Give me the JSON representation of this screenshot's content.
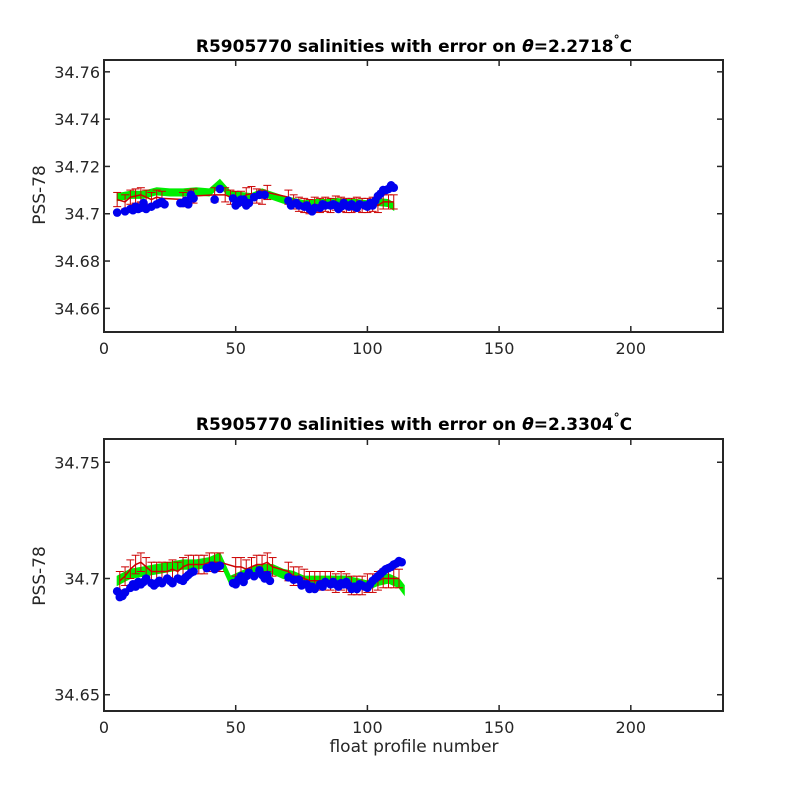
{
  "chart_data": [
    {
      "type": "scatter",
      "title_text": "R5905770 salinities with error on ",
      "title_symbol": "θ",
      "title_value": "=2.2718",
      "title_degree": "°",
      "title_unit": "C",
      "xlabel": "",
      "ylabel": "PSS-78",
      "xlim": [
        0,
        235
      ],
      "ylim": [
        34.65,
        34.765
      ],
      "xticks": [
        0,
        50,
        100,
        150,
        200
      ],
      "xtick_labels": [
        "0",
        "50",
        "100",
        "150",
        "200"
      ],
      "yticks": [
        34.66,
        34.68,
        34.7,
        34.72,
        34.74,
        34.76
      ],
      "ytick_labels": [
        "34.66",
        "34.68",
        "34.7",
        "34.72",
        "34.74",
        "34.76"
      ],
      "grid": false,
      "series": [
        {
          "role": "mapped-estimate-band",
          "color": "#00ee00",
          "x": [
            5,
            10,
            15,
            20,
            25,
            30,
            35,
            40,
            44,
            48,
            52,
            56,
            60,
            64,
            68,
            72,
            76,
            80,
            84,
            88,
            92,
            96,
            100,
            104,
            108,
            110
          ],
          "values": [
            34.707,
            34.708,
            34.708,
            34.7095,
            34.709,
            34.709,
            34.7095,
            34.709,
            34.713,
            34.708,
            34.7075,
            34.707,
            34.709,
            34.7075,
            34.706,
            34.705,
            34.704,
            34.7045,
            34.7045,
            34.705,
            34.7045,
            34.7045,
            34.704,
            34.705,
            34.7045,
            34.703
          ],
          "halfwidth": 0.0015
        },
        {
          "role": "calibrated-with-error",
          "color": "#cc0000",
          "x": [
            5,
            8,
            10,
            12,
            14,
            16,
            18,
            20,
            22,
            30,
            32,
            34,
            42,
            46,
            48,
            50,
            52,
            54,
            56,
            58,
            60,
            62,
            70,
            72,
            74,
            76,
            78,
            80,
            82,
            84,
            86,
            88,
            90,
            92,
            94,
            96,
            98,
            100,
            102,
            104,
            106,
            108,
            110
          ],
          "values": [
            34.706,
            34.705,
            34.707,
            34.7075,
            34.708,
            34.707,
            34.706,
            34.707,
            34.7065,
            34.706,
            34.707,
            34.7075,
            34.708,
            34.708,
            34.707,
            34.7065,
            34.7065,
            34.708,
            34.7085,
            34.7075,
            34.707,
            34.709,
            34.707,
            34.705,
            34.704,
            34.7035,
            34.703,
            34.704,
            34.7035,
            34.704,
            34.7035,
            34.7045,
            34.704,
            34.7035,
            34.7035,
            34.704,
            34.7035,
            34.7035,
            34.704,
            34.7035,
            34.705,
            34.705,
            34.705
          ],
          "error": 0.003
        },
        {
          "role": "float-salinity",
          "color": "#0000ee",
          "x": [
            5,
            8,
            10,
            11,
            12,
            13,
            14,
            15,
            16,
            18,
            20,
            21,
            22,
            23,
            29,
            30,
            31,
            32,
            33,
            34,
            42,
            44,
            49,
            50,
            51,
            52,
            53,
            54,
            55,
            57,
            59,
            61,
            70,
            71,
            73,
            74,
            76,
            77,
            78,
            79,
            80,
            82,
            83,
            84,
            86,
            87,
            88,
            89,
            90,
            91,
            92,
            93,
            94,
            95,
            96,
            97,
            99,
            100,
            101,
            102,
            103,
            104,
            105,
            106,
            107,
            108,
            109,
            110
          ],
          "values": [
            34.7005,
            34.701,
            34.702,
            34.7015,
            34.703,
            34.702,
            34.7025,
            34.7045,
            34.702,
            34.703,
            34.704,
            34.7045,
            34.705,
            34.704,
            34.7045,
            34.7045,
            34.7055,
            34.704,
            34.708,
            34.7065,
            34.706,
            34.7105,
            34.7065,
            34.7035,
            34.7045,
            34.706,
            34.706,
            34.7035,
            34.7045,
            34.707,
            34.708,
            34.708,
            34.7055,
            34.7035,
            34.7045,
            34.7035,
            34.703,
            34.7035,
            34.702,
            34.701,
            34.7025,
            34.7025,
            34.704,
            34.7035,
            34.7035,
            34.704,
            34.7035,
            34.702,
            34.703,
            34.7045,
            34.7035,
            34.703,
            34.704,
            34.703,
            34.7025,
            34.704,
            34.7035,
            34.703,
            34.7045,
            34.7035,
            34.7055,
            34.7075,
            34.7085,
            34.71,
            34.71,
            34.7105,
            34.712,
            34.711
          ]
        }
      ]
    },
    {
      "type": "scatter",
      "title_text": "R5905770 salinities with error on ",
      "title_symbol": "θ",
      "title_value": "=2.3304",
      "title_degree": "°",
      "title_unit": "C",
      "xlabel": "float profile number",
      "ylabel": "PSS-78",
      "xlim": [
        0,
        235
      ],
      "ylim": [
        34.643,
        34.76
      ],
      "xticks": [
        0,
        50,
        100,
        150,
        200
      ],
      "xtick_labels": [
        "0",
        "50",
        "100",
        "150",
        "200"
      ],
      "yticks": [
        34.65,
        34.7,
        34.75
      ],
      "ytick_labels": [
        "34.65",
        "34.7",
        "34.75"
      ],
      "grid": false,
      "series": [
        {
          "role": "mapped-estimate-band",
          "color": "#00ee00",
          "x": [
            5,
            10,
            15,
            20,
            25,
            30,
            35,
            40,
            44,
            48,
            52,
            56,
            60,
            64,
            68,
            72,
            76,
            80,
            84,
            88,
            92,
            96,
            100,
            104,
            108,
            112,
            114
          ],
          "values": [
            34.699,
            34.702,
            34.703,
            34.704,
            34.705,
            34.706,
            34.706,
            34.707,
            34.709,
            34.699,
            34.701,
            34.703,
            34.704,
            34.704,
            34.702,
            34.701,
            34.699,
            34.699,
            34.699,
            34.699,
            34.699,
            34.698,
            34.697,
            34.699,
            34.7,
            34.698,
            34.695
          ],
          "halfwidth": 0.002
        },
        {
          "role": "calibrated-with-error",
          "color": "#cc0000",
          "x": [
            6,
            8,
            10,
            12,
            14,
            16,
            18,
            20,
            22,
            24,
            26,
            28,
            30,
            32,
            34,
            36,
            38,
            40,
            42,
            44,
            50,
            52,
            54,
            56,
            58,
            60,
            62,
            64,
            70,
            72,
            74,
            76,
            78,
            80,
            82,
            84,
            86,
            88,
            90,
            92,
            94,
            96,
            98,
            100,
            102,
            104,
            106,
            108,
            110,
            112
          ],
          "values": [
            34.699,
            34.701,
            34.704,
            34.706,
            34.707,
            34.705,
            34.703,
            34.703,
            34.703,
            34.703,
            34.704,
            34.703,
            34.705,
            34.706,
            34.706,
            34.706,
            34.706,
            34.707,
            34.707,
            34.707,
            34.705,
            34.705,
            34.704,
            34.705,
            34.706,
            34.706,
            34.707,
            34.705,
            34.703,
            34.701,
            34.701,
            34.7,
            34.699,
            34.699,
            34.699,
            34.699,
            34.699,
            34.698,
            34.699,
            34.698,
            34.697,
            34.697,
            34.697,
            34.698,
            34.698,
            34.699,
            34.7,
            34.7,
            34.7,
            34.7
          ],
          "error": 0.004
        },
        {
          "role": "float-salinity",
          "color": "#0000ee",
          "x": [
            5,
            6,
            7,
            8,
            10,
            11,
            12,
            13,
            14,
            15,
            16,
            18,
            19,
            20,
            21,
            22,
            24,
            25,
            26,
            28,
            29,
            30,
            31,
            32,
            33,
            34,
            39,
            41,
            42,
            43,
            44,
            49,
            50,
            51,
            52,
            53,
            54,
            55,
            57,
            59,
            60,
            61,
            62,
            63,
            70,
            72,
            74,
            75,
            76,
            77,
            78,
            79,
            80,
            82,
            83,
            84,
            86,
            87,
            88,
            89,
            90,
            91,
            92,
            93,
            94,
            95,
            96,
            97,
            98,
            99,
            100,
            101,
            102,
            103,
            104,
            105,
            106,
            107,
            108,
            109,
            110,
            111,
            112,
            113
          ],
          "values": [
            34.6945,
            34.692,
            34.6925,
            34.694,
            34.696,
            34.6975,
            34.6965,
            34.6985,
            34.6975,
            34.6985,
            34.7,
            34.698,
            34.697,
            34.698,
            34.699,
            34.698,
            34.7,
            34.699,
            34.698,
            34.7,
            34.6995,
            34.699,
            34.7005,
            34.7015,
            34.7025,
            34.703,
            34.7045,
            34.7055,
            34.704,
            34.705,
            34.7055,
            34.698,
            34.6975,
            34.6995,
            34.701,
            34.6985,
            34.701,
            34.7025,
            34.701,
            34.7035,
            34.7015,
            34.7,
            34.7015,
            34.699,
            34.7005,
            34.6995,
            34.6995,
            34.697,
            34.6975,
            34.6975,
            34.6955,
            34.6965,
            34.6955,
            34.6975,
            34.6965,
            34.6985,
            34.6975,
            34.6985,
            34.6975,
            34.6965,
            34.698,
            34.6975,
            34.6985,
            34.697,
            34.6955,
            34.6965,
            34.6955,
            34.6975,
            34.697,
            34.6965,
            34.696,
            34.6975,
            34.699,
            34.7,
            34.701,
            34.702,
            34.703,
            34.704,
            34.7045,
            34.705,
            34.706,
            34.7065,
            34.7075,
            34.707
          ]
        }
      ]
    }
  ]
}
